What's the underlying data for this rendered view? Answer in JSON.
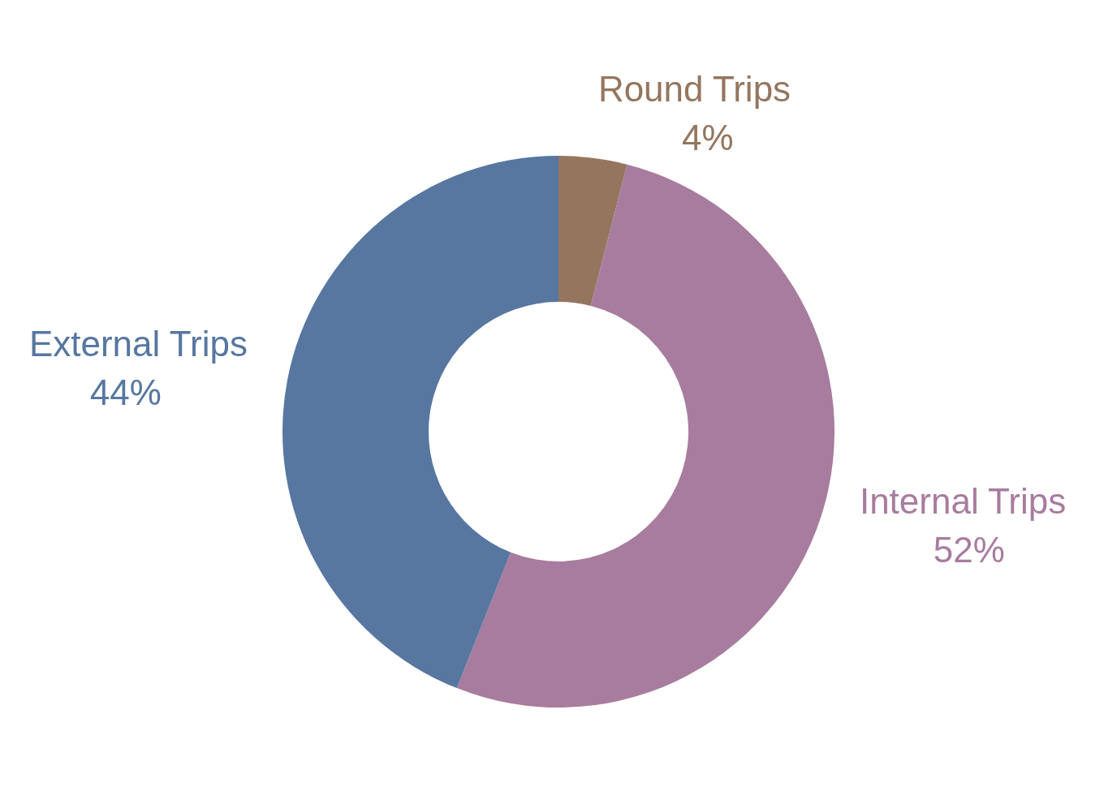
{
  "chart_data": {
    "type": "donut",
    "categories": [
      "Round Trips",
      "Internal Trips",
      "External Trips"
    ],
    "values": [
      4,
      52,
      44
    ],
    "colors": [
      "#94765f",
      "#a87c9e",
      "#5777a0"
    ],
    "value_labels": [
      "4%",
      "52%",
      "44%"
    ],
    "legend": false
  }
}
